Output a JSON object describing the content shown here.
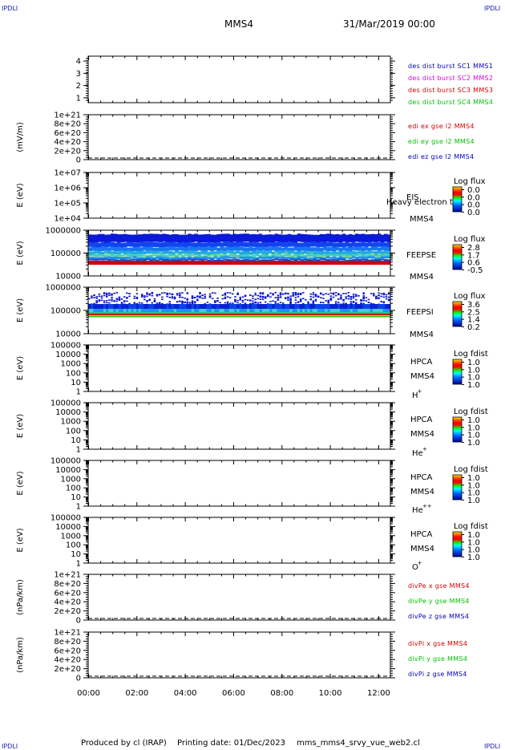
{
  "header": {
    "corner_tag": "IPDLI",
    "spacecraft": "MMS4",
    "datetime": "31/Mar/2019 00:00"
  },
  "footer": {
    "produced_by": "Produced by cl (IRAP)",
    "printing_date": "Printing date: 01/Dec/2023",
    "script_name": "mms_mms4_srvy_vue_web2.cl"
  },
  "colors": {
    "red": "#d40000",
    "magenta": "#e000e0",
    "green": "#00c000",
    "blue": "#0000c0",
    "axis": "#000000"
  },
  "time_axis": {
    "ticks": [
      "00:00",
      "02:00",
      "04:00",
      "06:00",
      "08:00",
      "10:00",
      "12:00"
    ]
  },
  "chart_data": [
    {
      "type": "line",
      "yticks": [
        "1",
        "2",
        "3",
        "4"
      ],
      "ylim": [
        0.6,
        4.4
      ],
      "ylabel": "",
      "legend": [
        {
          "text": "des dist burst SC1 MMS1",
          "color": "blue"
        },
        {
          "text": "des dist burst SC2 MMS2",
          "color": "magenta"
        },
        {
          "text": "des dist burst SC3 MMS3",
          "color": "red"
        },
        {
          "text": "des dist burst SC4 MMS4",
          "color": "green"
        }
      ],
      "series": []
    },
    {
      "type": "line",
      "ylabel": "(mV/m)",
      "yticks": [
        "0",
        "2e+20",
        "4e+20",
        "6e+20",
        "8e+20",
        "1e+21"
      ],
      "ylim": [
        0,
        1e+21
      ],
      "zero_line": true,
      "legend": [
        {
          "text": "edi ex gse l2 MMS4",
          "color": "red"
        },
        {
          "text": "edi ey gse l2 MMS4",
          "color": "green"
        },
        {
          "text": "edi ez gse l2 MMS4",
          "color": "blue"
        }
      ],
      "series": []
    },
    {
      "type": "heatmap",
      "ylabel": "E (eV)",
      "yticks": [
        "1e+04",
        "1e+05",
        "1e+06",
        "1e+07"
      ],
      "ylim": [
        10000,
        10000000
      ],
      "log": true,
      "instrument": [
        "EIS",
        "MMS4"
      ],
      "overlay_text": "Heavy electron to",
      "cbar_title": "Log flux",
      "cbar_ticks": [
        "0.0",
        "0.0",
        "0.0",
        "0.0"
      ],
      "spectrogram": "none"
    },
    {
      "type": "heatmap",
      "ylabel": "E (eV)",
      "yticks": [
        "10000",
        "100000",
        "1000000"
      ],
      "ylim": [
        10000,
        1000000
      ],
      "log": true,
      "instrument": [
        "FEEPSE",
        "MMS4"
      ],
      "cbar_title": "Log flux",
      "cbar_ticks": [
        "2.8",
        "1.7",
        "0.6",
        "-0.5"
      ],
      "spectrogram": "electrons"
    },
    {
      "type": "heatmap",
      "ylabel": "E (eV)",
      "yticks": [
        "10000",
        "100000",
        "1000000"
      ],
      "ylim": [
        10000,
        1000000
      ],
      "log": true,
      "instrument": [
        "FEEPSI",
        "MMS4"
      ],
      "cbar_title": "Log flux",
      "cbar_ticks": [
        "3.6",
        "2.5",
        "1.4",
        "0.2"
      ],
      "spectrogram": "ions"
    },
    {
      "type": "heatmap",
      "ylabel": "E (eV)",
      "yticks": [
        "1",
        "10",
        "100",
        "1000",
        "10000",
        "100000"
      ],
      "ylim": [
        1,
        100000
      ],
      "log": true,
      "instrument": [
        "HPCA",
        "MMS4",
        "H",
        "+"
      ],
      "cbar_title": "Log fdist",
      "cbar_ticks": [
        "1.0",
        "1.0",
        "1.0",
        "1.0"
      ],
      "spectrogram": "none"
    },
    {
      "type": "heatmap",
      "ylabel": "E (eV)",
      "yticks": [
        "1",
        "10",
        "100",
        "1000",
        "10000",
        "100000"
      ],
      "ylim": [
        1,
        100000
      ],
      "log": true,
      "instrument": [
        "HPCA",
        "MMS4",
        "He",
        "+"
      ],
      "cbar_title": "Log fdist",
      "cbar_ticks": [
        "1.0",
        "1.0",
        "1.0",
        "1.0"
      ],
      "spectrogram": "none"
    },
    {
      "type": "heatmap",
      "ylabel": "E (eV)",
      "yticks": [
        "1",
        "10",
        "100",
        "1000",
        "10000",
        "100000"
      ],
      "ylim": [
        1,
        100000
      ],
      "log": true,
      "instrument": [
        "HPCA",
        "MMS4",
        "He",
        "++"
      ],
      "cbar_title": "Log fdist",
      "cbar_ticks": [
        "1.0",
        "1.0",
        "1.0",
        "1.0"
      ],
      "spectrogram": "none"
    },
    {
      "type": "heatmap",
      "ylabel": "E (eV)",
      "yticks": [
        "1",
        "10",
        "100",
        "1000",
        "10000",
        "100000"
      ],
      "ylim": [
        1,
        100000
      ],
      "log": true,
      "instrument": [
        "HPCA",
        "MMS4",
        "O",
        "+"
      ],
      "cbar_title": "Log fdist",
      "cbar_ticks": [
        "1.0",
        "1.0",
        "1.0",
        "1.0"
      ],
      "spectrogram": "none"
    },
    {
      "type": "line",
      "ylabel": "(nPa/km)",
      "yticks": [
        "0",
        "2e+20",
        "4e+20",
        "6e+20",
        "8e+20",
        "1e+21"
      ],
      "ylim": [
        0,
        1e+21
      ],
      "zero_line": true,
      "legend": [
        {
          "text": "divPe x gse MMS4",
          "color": "red"
        },
        {
          "text": "divPe y gse MMS4",
          "color": "green"
        },
        {
          "text": "divPe z gse MMS4",
          "color": "blue"
        }
      ],
      "series": []
    },
    {
      "type": "line",
      "ylabel": "(nPa/km)",
      "yticks": [
        "0",
        "2e+20",
        "4e+20",
        "6e+20",
        "8e+20",
        "1e+21"
      ],
      "ylim": [
        0,
        1e+21
      ],
      "zero_line": true,
      "legend": [
        {
          "text": "divPi x gse MMS4",
          "color": "red"
        },
        {
          "text": "divPi y gse MMS4",
          "color": "green"
        },
        {
          "text": "divPi z gse MMS4",
          "color": "blue"
        }
      ],
      "series": []
    }
  ]
}
